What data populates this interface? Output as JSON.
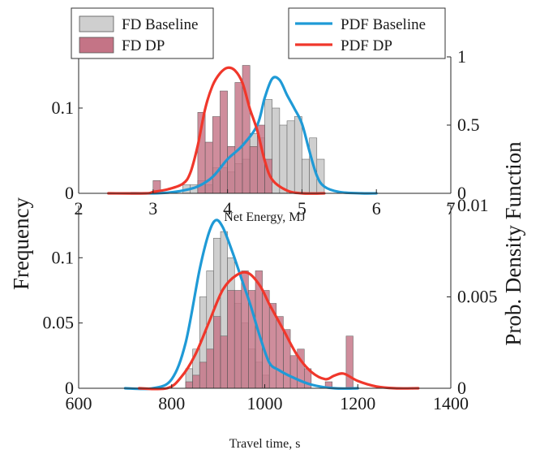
{
  "figure": {
    "left_ylabel": "Frequency",
    "right_ylabel": "Prob. Density Function"
  },
  "colors": {
    "fd_baseline_fill": "#cfcfcf",
    "fd_dp_fill": "#c47486",
    "pdf_baseline": "#1f9ad6",
    "pdf_dp": "#f0372b",
    "axis": "#262626"
  },
  "chart_data": [
    {
      "type": "bar",
      "xlabel": "Net Energy, MJ",
      "xlim": [
        2,
        7
      ],
      "ylim_left": [
        0,
        0.16
      ],
      "ylim_right": [
        0,
        1
      ],
      "xticks": [
        "2",
        "3",
        "4",
        "5",
        "6",
        "7"
      ],
      "yticks_left": [
        "0",
        "0.1"
      ],
      "yticks_right": [
        "0",
        "0.5",
        "1"
      ],
      "bin_width": 0.1,
      "legend": {
        "fd_baseline": "FD Baseline",
        "fd_dp": "FD DP",
        "pdf_baseline": "PDF Baseline",
        "pdf_dp": "PDF DP"
      },
      "series": [
        {
          "name": "FD Baseline",
          "kind": "histogram",
          "bins": [
            [
              3.4,
              0.01
            ],
            [
              3.5,
              0.01
            ],
            [
              3.6,
              0.015
            ],
            [
              3.7,
              0.01
            ],
            [
              3.8,
              0.03
            ],
            [
              3.9,
              0.03
            ],
            [
              4.0,
              0.025
            ],
            [
              4.1,
              0.035
            ],
            [
              4.2,
              0.04
            ],
            [
              4.3,
              0.07
            ],
            [
              4.4,
              0.065
            ],
            [
              4.5,
              0.11
            ],
            [
              4.6,
              0.1
            ],
            [
              4.7,
              0.08
            ],
            [
              4.8,
              0.085
            ],
            [
              4.9,
              0.09
            ],
            [
              5.0,
              0.04
            ],
            [
              5.1,
              0.065
            ],
            [
              5.2,
              0.04
            ]
          ]
        },
        {
          "name": "FD DP",
          "kind": "histogram",
          "bins": [
            [
              3.0,
              0.015
            ],
            [
              3.1,
              0.0
            ],
            [
              3.2,
              0.0
            ],
            [
              3.3,
              0.0
            ],
            [
              3.4,
              0.0
            ],
            [
              3.5,
              0.0
            ],
            [
              3.6,
              0.095
            ],
            [
              3.7,
              0.06
            ],
            [
              3.8,
              0.09
            ],
            [
              3.9,
              0.12
            ],
            [
              4.0,
              0.055
            ],
            [
              4.1,
              0.13
            ],
            [
              4.2,
              0.15
            ],
            [
              4.3,
              0.055
            ],
            [
              4.4,
              0.08
            ],
            [
              4.5,
              0.04
            ]
          ]
        },
        {
          "name": "PDF Baseline",
          "kind": "density",
          "points": [
            [
              2.7,
              0.0
            ],
            [
              3.0,
              0.0
            ],
            [
              3.2,
              0.005
            ],
            [
              3.4,
              0.02
            ],
            [
              3.6,
              0.05
            ],
            [
              3.8,
              0.12
            ],
            [
              4.0,
              0.25
            ],
            [
              4.2,
              0.35
            ],
            [
              4.4,
              0.5
            ],
            [
              4.5,
              0.7
            ],
            [
              4.6,
              0.84
            ],
            [
              4.7,
              0.83
            ],
            [
              4.8,
              0.72
            ],
            [
              4.9,
              0.62
            ],
            [
              5.0,
              0.51
            ],
            [
              5.1,
              0.31
            ],
            [
              5.2,
              0.13
            ],
            [
              5.3,
              0.05
            ],
            [
              5.5,
              0.01
            ],
            [
              5.8,
              0.0
            ],
            [
              6.0,
              0.0
            ]
          ]
        },
        {
          "name": "PDF DP",
          "kind": "density",
          "points": [
            [
              2.4,
              0.0
            ],
            [
              2.9,
              0.0
            ],
            [
              3.0,
              0.01
            ],
            [
              3.2,
              0.03
            ],
            [
              3.4,
              0.07
            ],
            [
              3.5,
              0.15
            ],
            [
              3.6,
              0.35
            ],
            [
              3.7,
              0.62
            ],
            [
              3.8,
              0.79
            ],
            [
              3.9,
              0.88
            ],
            [
              4.0,
              0.92
            ],
            [
              4.1,
              0.9
            ],
            [
              4.2,
              0.81
            ],
            [
              4.3,
              0.62
            ],
            [
              4.4,
              0.46
            ],
            [
              4.5,
              0.24
            ],
            [
              4.6,
              0.1
            ],
            [
              4.8,
              0.02
            ],
            [
              5.0,
              0.0
            ],
            [
              5.3,
              0.0
            ]
          ]
        }
      ]
    },
    {
      "type": "bar",
      "xlabel": "Travel time, s",
      "xlim": [
        600,
        1400
      ],
      "ylim_left": [
        0,
        0.14
      ],
      "ylim_right": [
        0,
        0.01
      ],
      "xticks": [
        "600",
        "800",
        "1000",
        "1200",
        "1400"
      ],
      "yticks_left": [
        "0",
        "0.05",
        "0.1"
      ],
      "yticks_right": [
        "0",
        "0.005",
        "0.01"
      ],
      "bin_width": 15,
      "series": [
        {
          "name": "FD Baseline",
          "kind": "histogram",
          "bins": [
            [
              830,
              0.015
            ],
            [
              845,
              0.03
            ],
            [
              860,
              0.07
            ],
            [
              875,
              0.09
            ],
            [
              890,
              0.115
            ],
            [
              905,
              0.12
            ],
            [
              920,
              0.1
            ],
            [
              935,
              0.065
            ],
            [
              950,
              0.05
            ],
            [
              965,
              0.03
            ],
            [
              980,
              0.02
            ],
            [
              995,
              0.01
            ]
          ]
        },
        {
          "name": "FD DP",
          "kind": "histogram",
          "bins": [
            [
              830,
              0.005
            ],
            [
              845,
              0.01
            ],
            [
              860,
              0.02
            ],
            [
              875,
              0.03
            ],
            [
              890,
              0.055
            ],
            [
              905,
              0.04
            ],
            [
              920,
              0.075
            ],
            [
              935,
              0.075
            ],
            [
              950,
              0.09
            ],
            [
              965,
              0.075
            ],
            [
              980,
              0.09
            ],
            [
              995,
              0.075
            ],
            [
              1010,
              0.065
            ],
            [
              1025,
              0.055
            ],
            [
              1040,
              0.045
            ],
            [
              1055,
              0.025
            ],
            [
              1070,
              0.03
            ],
            [
              1085,
              0.015
            ],
            [
              1100,
              0.0
            ],
            [
              1115,
              0.0
            ],
            [
              1130,
              0.005
            ],
            [
              1145,
              0.0
            ],
            [
              1160,
              0.0
            ],
            [
              1175,
              0.04
            ]
          ]
        },
        {
          "name": "PDF Baseline",
          "kind": "density",
          "points": [
            [
              700,
              0.0
            ],
            [
              760,
              0.0
            ],
            [
              800,
              0.0005
            ],
            [
              830,
              0.0025
            ],
            [
              860,
              0.0065
            ],
            [
              880,
              0.0085
            ],
            [
              895,
              0.0092
            ],
            [
              910,
              0.0088
            ],
            [
              930,
              0.0075
            ],
            [
              950,
              0.006
            ],
            [
              970,
              0.0045
            ],
            [
              990,
              0.0028
            ],
            [
              1010,
              0.0014
            ],
            [
              1030,
              0.001
            ],
            [
              1060,
              0.0006
            ],
            [
              1100,
              0.0002
            ],
            [
              1150,
              0.0
            ],
            [
              1200,
              0.0
            ]
          ]
        },
        {
          "name": "PDF DP",
          "kind": "density",
          "points": [
            [
              730,
              0.0
            ],
            [
              790,
              0.0
            ],
            [
              820,
              0.0006
            ],
            [
              850,
              0.0018
            ],
            [
              880,
              0.0036
            ],
            [
              910,
              0.0054
            ],
            [
              940,
              0.0062
            ],
            [
              965,
              0.0063
            ],
            [
              990,
              0.0056
            ],
            [
              1010,
              0.0046
            ],
            [
              1040,
              0.0032
            ],
            [
              1070,
              0.0018
            ],
            [
              1100,
              0.0009
            ],
            [
              1130,
              0.0005
            ],
            [
              1150,
              0.0007
            ],
            [
              1170,
              0.0008
            ],
            [
              1200,
              0.0004
            ],
            [
              1240,
              0.0001
            ],
            [
              1280,
              0.0
            ],
            [
              1330,
              0.0
            ]
          ]
        }
      ]
    }
  ]
}
